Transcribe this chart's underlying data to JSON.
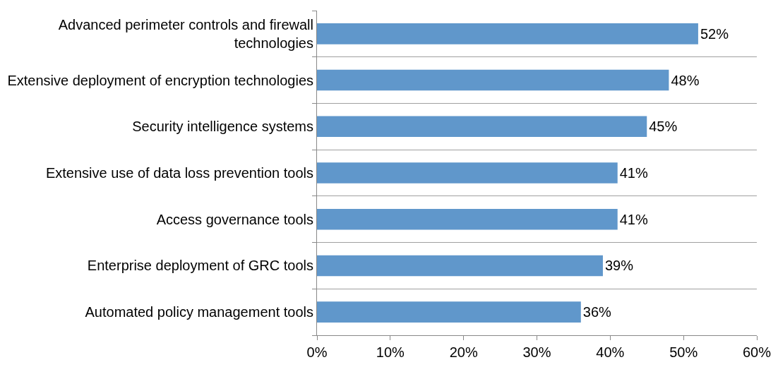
{
  "chart_data": {
    "type": "bar",
    "orientation": "horizontal",
    "categories": [
      "Advanced perimeter controls and firewall technologies",
      "Extensive deployment of encryption technologies",
      "Security intelligence systems",
      "Extensive use of data loss prevention tools",
      "Access governance tools",
      "Enterprise deployment of GRC tools",
      "Automated policy management tools"
    ],
    "values": [
      52,
      48,
      45,
      41,
      41,
      39,
      36
    ],
    "value_labels": [
      "52%",
      "48%",
      "45%",
      "41%",
      "41%",
      "39%",
      "36%"
    ],
    "color": "#6097cb",
    "xlim": [
      0,
      60
    ],
    "xticks": [
      {
        "value": 0,
        "label": "0%"
      },
      {
        "value": 10,
        "label": "10%"
      },
      {
        "value": 20,
        "label": "20%"
      },
      {
        "value": 30,
        "label": "30%"
      },
      {
        "value": 40,
        "label": "40%"
      },
      {
        "value": 50,
        "label": "50%"
      },
      {
        "value": 60,
        "label": "60%"
      }
    ],
    "grid": "y"
  }
}
